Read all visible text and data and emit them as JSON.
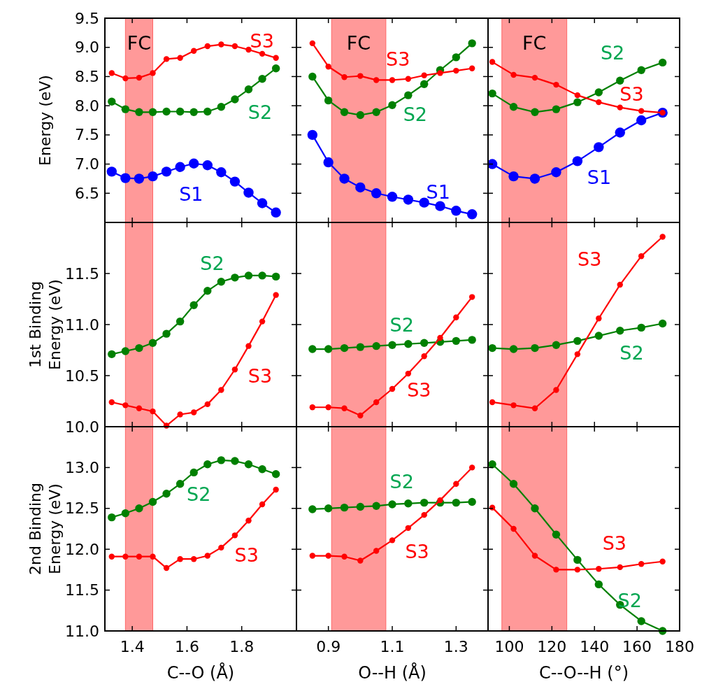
{
  "chart_data": [
    {
      "type": "line",
      "x": [
        1.325,
        1.375,
        1.425,
        1.475,
        1.525,
        1.575,
        1.625,
        1.675,
        1.725,
        1.775,
        1.825,
        1.875,
        1.925
      ],
      "xlim": [
        1.3,
        2.0
      ],
      "xticks": [
        1.4,
        1.6,
        1.8
      ],
      "ylim": [
        6.0,
        9.5
      ],
      "yticks": [
        6.5,
        {
          "value": 7,
          "label": "7.0"
        },
        7.5,
        {
          "value": 8,
          "label": "8.0"
        },
        8.5,
        {
          "value": 9,
          "label": "9.0"
        },
        9.5
      ],
      "tick_labels": "y",
      "ylabel": "Energy (eV)",
      "marker": "circle",
      "line_style": "solid",
      "bands": [
        {
          "axis": "x",
          "from": 1.375,
          "to": 1.475,
          "label": "FC",
          "color": "#ff9999"
        }
      ],
      "series": [
        {
          "name": "S1",
          "color": "#0000ff",
          "values": [
            6.87,
            6.76,
            6.75,
            6.79,
            6.87,
            6.95,
            7.01,
            6.98,
            6.86,
            6.7,
            6.51,
            6.33,
            6.17
          ]
        },
        {
          "name": "S2",
          "color": "#008000",
          "values": [
            8.07,
            7.94,
            7.89,
            7.89,
            7.9,
            7.9,
            7.89,
            7.9,
            7.98,
            8.11,
            8.28,
            8.46,
            8.64
          ]
        },
        {
          "name": "S3",
          "color": "#ff0000",
          "values": [
            8.56,
            8.47,
            8.48,
            8.56,
            8.8,
            8.82,
            8.94,
            9.02,
            9.05,
            9.02,
            8.96,
            8.89,
            8.82
          ]
        }
      ]
    },
    {
      "type": "line",
      "x": [
        0.85,
        0.9,
        0.95,
        1.0,
        1.05,
        1.1,
        1.15,
        1.2,
        1.25,
        1.3,
        1.35
      ],
      "xlim": [
        0.8,
        1.4
      ],
      "xticks": [
        0.9,
        1.1,
        1.3
      ],
      "ylim": [
        6.0,
        9.5
      ],
      "yticks": [
        6.5,
        7,
        7.5,
        8,
        8.5,
        9,
        9.5
      ],
      "tick_labels": false,
      "marker": "circle",
      "line_style": "solid",
      "bands": [
        {
          "axis": "x",
          "from": 0.91,
          "to": 1.08,
          "label": "FC",
          "color": "#ff9999"
        }
      ],
      "series": [
        {
          "name": "S1",
          "color": "#0000ff",
          "values": [
            7.5,
            7.03,
            6.75,
            6.6,
            6.5,
            6.44,
            6.39,
            6.34,
            6.28,
            6.2,
            6.14
          ]
        },
        {
          "name": "S2",
          "color": "#008000",
          "values": [
            8.5,
            8.09,
            7.89,
            7.84,
            7.89,
            8.01,
            8.18,
            8.37,
            8.61,
            8.83,
            9.07
          ]
        },
        {
          "name": "S3",
          "color": "#ff0000",
          "values": [
            9.07,
            8.67,
            8.49,
            8.51,
            8.44,
            8.44,
            8.46,
            8.52,
            8.56,
            8.6,
            8.64
          ]
        }
      ]
    },
    {
      "type": "line",
      "x": [
        92,
        102,
        112,
        122,
        132,
        142,
        152,
        162,
        172
      ],
      "xlim": [
        90,
        180
      ],
      "xticks": [
        100,
        120,
        140,
        160,
        180
      ],
      "ylim": [
        6.0,
        9.5
      ],
      "yticks": [
        6.5,
        7,
        7.5,
        8,
        8.5,
        9,
        9.5
      ],
      "tick_labels": false,
      "marker": "circle",
      "line_style": "solid",
      "bands": [
        {
          "axis": "x",
          "from": 96.5,
          "to": 127,
          "label": "FC",
          "color": "#ff9999"
        }
      ],
      "series": [
        {
          "name": "S1",
          "color": "#0000ff",
          "values": [
            7.0,
            6.79,
            6.75,
            6.86,
            7.05,
            7.29,
            7.54,
            7.75,
            7.88
          ]
        },
        {
          "name": "S2",
          "color": "#008000",
          "values": [
            8.21,
            7.98,
            7.89,
            7.94,
            8.06,
            8.23,
            8.43,
            8.61,
            8.74
          ]
        },
        {
          "name": "S3",
          "color": "#ff0000",
          "values": [
            8.75,
            8.53,
            8.48,
            8.36,
            8.18,
            8.06,
            7.97,
            7.91,
            7.88
          ]
        }
      ]
    },
    {
      "type": "line",
      "x": [
        1.325,
        1.375,
        1.425,
        1.475,
        1.525,
        1.575,
        1.625,
        1.675,
        1.725,
        1.775,
        1.825,
        1.875,
        1.925
      ],
      "xlim": [
        1.3,
        2.0
      ],
      "xticks": [
        1.4,
        1.6,
        1.8
      ],
      "ylim": [
        10.0,
        12.0
      ],
      "yticks": [
        {
          "value": 10,
          "label": "10.0"
        },
        10.5,
        {
          "value": 11,
          "label": "11.0"
        },
        11.5
      ],
      "tick_labels": "y",
      "ylabel": "1st Binding Energy (eV)",
      "marker": "circle",
      "line_style": "solid",
      "bands": [
        {
          "axis": "x",
          "from": 1.375,
          "to": 1.475,
          "color": "#ff9999"
        }
      ],
      "series": [
        {
          "name": "S2",
          "color": "#008000",
          "values": [
            10.71,
            10.74,
            10.77,
            10.82,
            10.91,
            11.03,
            11.19,
            11.33,
            11.42,
            11.46,
            11.48,
            11.48,
            11.47
          ]
        },
        {
          "name": "S3",
          "color": "#ff0000",
          "values": [
            10.24,
            10.21,
            10.18,
            10.15,
            10.01,
            10.12,
            10.14,
            10.22,
            10.36,
            10.56,
            10.79,
            11.03,
            11.29
          ]
        }
      ]
    },
    {
      "type": "line",
      "x": [
        0.85,
        0.9,
        0.95,
        1.0,
        1.05,
        1.1,
        1.15,
        1.2,
        1.25,
        1.3,
        1.35
      ],
      "xlim": [
        0.8,
        1.4
      ],
      "xticks": [
        0.9,
        1.1,
        1.3
      ],
      "ylim": [
        10.0,
        12.0
      ],
      "yticks": [
        10,
        10.5,
        11,
        11.5
      ],
      "tick_labels": false,
      "marker": "circle",
      "line_style": "solid",
      "bands": [
        {
          "axis": "x",
          "from": 0.91,
          "to": 1.08,
          "color": "#ff9999"
        }
      ],
      "series": [
        {
          "name": "S2",
          "color": "#008000",
          "values": [
            10.76,
            10.76,
            10.77,
            10.78,
            10.79,
            10.8,
            10.81,
            10.82,
            10.83,
            10.84,
            10.85
          ]
        },
        {
          "name": "S3",
          "color": "#ff0000",
          "values": [
            10.19,
            10.19,
            10.18,
            10.11,
            10.24,
            10.37,
            10.52,
            10.69,
            10.87,
            11.07,
            11.27
          ]
        }
      ]
    },
    {
      "type": "line",
      "x": [
        92,
        102,
        112,
        122,
        132,
        142,
        152,
        162,
        172
      ],
      "xlim": [
        90,
        180
      ],
      "xticks": [
        100,
        120,
        140,
        160,
        180
      ],
      "ylim": [
        10.0,
        12.0
      ],
      "yticks": [
        10,
        10.5,
        11,
        11.5
      ],
      "tick_labels": false,
      "marker": "circle",
      "line_style": "solid",
      "bands": [
        {
          "axis": "x",
          "from": 96.5,
          "to": 127,
          "color": "#ff9999"
        }
      ],
      "series": [
        {
          "name": "S2",
          "color": "#008000",
          "values": [
            10.77,
            10.76,
            10.77,
            10.8,
            10.84,
            10.89,
            10.94,
            10.97,
            11.01
          ]
        },
        {
          "name": "S3",
          "color": "#ff0000",
          "values": [
            10.24,
            10.21,
            10.18,
            10.36,
            10.71,
            11.06,
            11.39,
            11.67,
            11.86
          ]
        }
      ]
    },
    {
      "type": "line",
      "x": [
        1.325,
        1.375,
        1.425,
        1.475,
        1.525,
        1.575,
        1.625,
        1.675,
        1.725,
        1.775,
        1.825,
        1.875,
        1.925
      ],
      "xlim": [
        1.3,
        2.0
      ],
      "xticks": [
        1.4,
        1.6,
        1.8
      ],
      "ylim": [
        11.0,
        13.5
      ],
      "yticks": [
        {
          "value": 11,
          "label": "11.0"
        },
        11.5,
        {
          "value": 12,
          "label": "12.0"
        },
        12.5,
        {
          "value": 13,
          "label": "13.0"
        }
      ],
      "xlabel": "C--O (Å)",
      "ylabel": "2nd Binding Energy (eV)",
      "marker": "circle",
      "line_style": "solid",
      "bands": [
        {
          "axis": "x",
          "from": 1.375,
          "to": 1.475,
          "color": "#ff9999"
        }
      ],
      "series": [
        {
          "name": "S2",
          "color": "#008000",
          "values": [
            12.39,
            12.44,
            12.5,
            12.58,
            12.68,
            12.8,
            12.94,
            13.04,
            13.09,
            13.08,
            13.04,
            12.98,
            12.92
          ]
        },
        {
          "name": "S3",
          "color": "#ff0000",
          "values": [
            11.91,
            11.91,
            11.91,
            11.91,
            11.77,
            11.88,
            11.88,
            11.92,
            12.02,
            12.17,
            12.35,
            12.55,
            12.73
          ]
        }
      ]
    },
    {
      "type": "line",
      "x": [
        0.85,
        0.9,
        0.95,
        1.0,
        1.05,
        1.1,
        1.15,
        1.2,
        1.25,
        1.3,
        1.35
      ],
      "xlim": [
        0.8,
        1.4
      ],
      "xticks": [
        0.9,
        1.1,
        1.3
      ],
      "ylim": [
        11.0,
        13.5
      ],
      "yticks": [
        11,
        11.5,
        12,
        12.5,
        13
      ],
      "tick_labels": "x",
      "xlabel": "O--H (Å)",
      "marker": "circle",
      "line_style": "solid",
      "bands": [
        {
          "axis": "x",
          "from": 0.91,
          "to": 1.08,
          "color": "#ff9999"
        }
      ],
      "series": [
        {
          "name": "S2",
          "color": "#008000",
          "values": [
            12.49,
            12.5,
            12.51,
            12.52,
            12.53,
            12.55,
            12.56,
            12.57,
            12.57,
            12.57,
            12.58
          ]
        },
        {
          "name": "S3",
          "color": "#ff0000",
          "values": [
            11.92,
            11.92,
            11.91,
            11.86,
            11.98,
            12.11,
            12.26,
            12.42,
            12.6,
            12.8,
            13.0
          ]
        }
      ]
    },
    {
      "type": "line",
      "x": [
        92,
        102,
        112,
        122,
        132,
        142,
        152,
        162,
        172
      ],
      "xlim": [
        90,
        180
      ],
      "xticks": [
        100,
        120,
        140,
        160,
        180
      ],
      "ylim": [
        11.0,
        13.5
      ],
      "yticks": [
        11,
        11.5,
        12,
        12.5,
        13
      ],
      "tick_labels": "x",
      "xlabel": "C--O--H (°)",
      "marker": "circle",
      "line_style": "solid",
      "bands": [
        {
          "axis": "x",
          "from": 96.5,
          "to": 127,
          "color": "#ff9999"
        }
      ],
      "series": [
        {
          "name": "S2",
          "color": "#008000",
          "values": [
            13.04,
            12.8,
            12.5,
            12.18,
            11.87,
            11.57,
            11.32,
            11.12,
            11.0
          ]
        },
        {
          "name": "S3",
          "color": "#ff0000",
          "values": [
            12.51,
            12.25,
            11.92,
            11.75,
            11.75,
            11.76,
            11.78,
            11.82,
            11.85
          ]
        }
      ]
    }
  ]
}
